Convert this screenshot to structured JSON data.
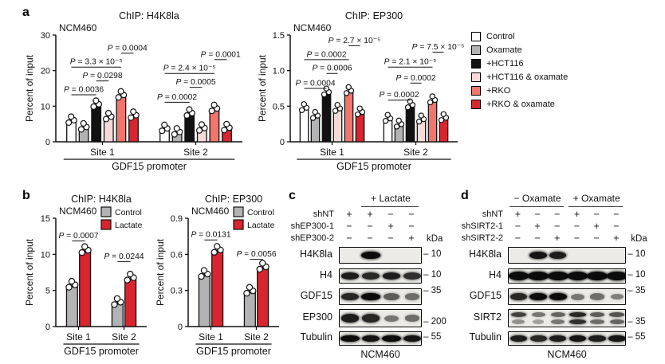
{
  "panel_labels": {
    "a": "a",
    "b": "b",
    "c": "c",
    "d": "d"
  },
  "legend_a": {
    "items": [
      {
        "label": "Control",
        "color": "#ffffff"
      },
      {
        "label": "Oxamate",
        "color": "#b3b3b5"
      },
      {
        "label": "+HCT116",
        "color": "#111111"
      },
      {
        "label": "+HCT116 & oxamate",
        "color": "#f7dbd8"
      },
      {
        "label": "+RKO",
        "color": "#f2756c"
      },
      {
        "label": "+RKO & oxamate",
        "color": "#d9252f"
      }
    ]
  },
  "chart_data": [
    {
      "id": "a-chip-h4k8la",
      "type": "bar",
      "title": "ChIP: H4K8la",
      "subtitle": "NCM460",
      "ylabel": "Percent of input",
      "ylim": [
        0,
        30
      ],
      "yticks": [
        {
          "v": 0,
          "label": "0"
        },
        {
          "v": 10,
          "label": "10"
        },
        {
          "v": 20,
          "label": "20"
        },
        {
          "v": 30,
          "label": "30"
        }
      ],
      "groups": [
        "Site 1",
        "Site 2"
      ],
      "group_label": "GDF15 promoter",
      "series": [
        {
          "name": "Control",
          "color": "#ffffff",
          "values": [
            5.5,
            3.2
          ]
        },
        {
          "name": "Oxamate",
          "color": "#b3b3b5",
          "values": [
            3.6,
            2.2
          ]
        },
        {
          "name": "+HCT116",
          "color": "#111111",
          "values": [
            10.0,
            7.5
          ]
        },
        {
          "name": "+HCT116 & oxamate",
          "color": "#f7dbd8",
          "values": [
            6.5,
            3.3
          ]
        },
        {
          "name": "+RKO",
          "color": "#f2756c",
          "values": [
            12.6,
            8.8
          ]
        },
        {
          "name": "+RKO & oxamate",
          "color": "#d9252f",
          "values": [
            6.9,
            3.4
          ]
        }
      ],
      "annotations": [
        {
          "text": "P = 0.0036",
          "x1": [
            0,
            0
          ],
          "x2": [
            0,
            2
          ],
          "yf": 0.56
        },
        {
          "text": "P = 0.0298",
          "x1": [
            0,
            2
          ],
          "x2": [
            0,
            3
          ],
          "yf": 0.43
        },
        {
          "text": "P = 3.3 × 10⁻⁵",
          "x1": [
            0,
            0
          ],
          "x2": [
            0,
            4
          ],
          "yf": 0.3
        },
        {
          "text": "P = 0.0004",
          "x1": [
            0,
            4
          ],
          "x2": [
            0,
            5
          ],
          "yf": 0.17
        },
        {
          "text": "P = 0.0002",
          "x1": [
            1,
            0
          ],
          "x2": [
            1,
            2
          ],
          "yf": 0.63
        },
        {
          "text": "P = 0.0005",
          "x1": [
            1,
            2
          ],
          "x2": [
            1,
            3
          ],
          "yf": 0.49
        },
        {
          "text": "P = 2.4 × 10⁻⁵",
          "x1": [
            1,
            0
          ],
          "x2": [
            1,
            4
          ],
          "yf": 0.36
        },
        {
          "text": "P = 0.0001",
          "x1": [
            1,
            4
          ],
          "x2": [
            1,
            5
          ],
          "yf": 0.23
        }
      ]
    },
    {
      "id": "a-chip-ep300",
      "type": "bar",
      "title": "ChIP: EP300",
      "subtitle": "NCM460",
      "ylabel": "Percent of input",
      "ylim": [
        0,
        1.5
      ],
      "yticks": [
        {
          "v": 0,
          "label": "0"
        },
        {
          "v": 0.5,
          "label": "0.5"
        },
        {
          "v": 1.0,
          "label": "1.0"
        },
        {
          "v": 1.5,
          "label": "1.5"
        }
      ],
      "groups": [
        "Site 1",
        "Site 2"
      ],
      "group_label": "GDF15 promoter",
      "series": [
        {
          "name": "Control",
          "color": "#ffffff",
          "values": [
            0.45,
            0.3
          ]
        },
        {
          "name": "Oxamate",
          "color": "#b3b3b5",
          "values": [
            0.34,
            0.22
          ]
        },
        {
          "name": "+HCT116",
          "color": "#111111",
          "values": [
            0.67,
            0.49
          ]
        },
        {
          "name": "+HCT116 & oxamate",
          "color": "#f7dbd8",
          "values": [
            0.44,
            0.29
          ]
        },
        {
          "name": "+RKO",
          "color": "#f2756c",
          "values": [
            0.69,
            0.56
          ]
        },
        {
          "name": "+RKO & oxamate",
          "color": "#d9252f",
          "values": [
            0.39,
            0.31
          ]
        }
      ],
      "annotations": [
        {
          "text": "P = 0.0004",
          "x1": [
            0,
            0
          ],
          "x2": [
            0,
            2
          ],
          "yf": 0.5
        },
        {
          "text": "P = 0.0006",
          "x1": [
            0,
            2
          ],
          "x2": [
            0,
            3
          ],
          "yf": 0.36
        },
        {
          "text": "P = 0.0002",
          "x1": [
            0,
            0
          ],
          "x2": [
            0,
            4
          ],
          "yf": 0.23
        },
        {
          "text": "P = 2.7 × 10⁻⁵",
          "x1": [
            0,
            4
          ],
          "x2": [
            0,
            5
          ],
          "yf": 0.1
        },
        {
          "text": "P = 0.0002",
          "x1": [
            1,
            0
          ],
          "x2": [
            1,
            2
          ],
          "yf": 0.61
        },
        {
          "text": "P = 0.0002",
          "x1": [
            1,
            2
          ],
          "x2": [
            1,
            3
          ],
          "yf": 0.45
        },
        {
          "text": "P = 2.1 × 10⁻⁵",
          "x1": [
            1,
            0
          ],
          "x2": [
            1,
            4
          ],
          "yf": 0.3
        },
        {
          "text": "P = 7.5 × 10⁻⁵",
          "x1": [
            1,
            4
          ],
          "x2": [
            1,
            5
          ],
          "yf": 0.16
        }
      ]
    },
    {
      "id": "b-chip-h4k8la",
      "type": "bar",
      "title": "ChIP: H4K8la",
      "subtitle": "NCM460",
      "ylabel": "Percent of input",
      "ylim": [
        0,
        15
      ],
      "yticks": [
        {
          "v": 0,
          "label": "0"
        },
        {
          "v": 5,
          "label": "5"
        },
        {
          "v": 10,
          "label": "10"
        },
        {
          "v": 15,
          "label": "15"
        }
      ],
      "groups": [
        "Site 1",
        "Site 2"
      ],
      "group_label": "GDF15 promoter",
      "legend_inline": true,
      "series": [
        {
          "name": "Control",
          "color": "#b3b3b5",
          "values": [
            5.5,
            3.1
          ]
        },
        {
          "name": "Lactate",
          "color": "#d9252f",
          "values": [
            10.3,
            6.5
          ]
        }
      ],
      "annotations": [
        {
          "text": "P = 0.0007",
          "x1": [
            0,
            0
          ],
          "x2": [
            0,
            1
          ],
          "yf": 0.21
        },
        {
          "text": "P = 0.0244",
          "x1": [
            1,
            0
          ],
          "x2": [
            1,
            1
          ],
          "yf": 0.4
        }
      ]
    },
    {
      "id": "b-chip-ep300",
      "type": "bar",
      "title": "ChIP: EP300",
      "subtitle": "NCM460",
      "ylabel": "Percent of input",
      "ylim": [
        0,
        0.9
      ],
      "yticks": [
        {
          "v": 0,
          "label": "0"
        },
        {
          "v": 0.3,
          "label": "0.3"
        },
        {
          "v": 0.6,
          "label": "0.6"
        },
        {
          "v": 0.9,
          "label": "0.9"
        }
      ],
      "groups": [
        "Site 1",
        "Site 2"
      ],
      "group_label": "GDF15 promoter",
      "legend_inline": true,
      "series": [
        {
          "name": "Control",
          "color": "#b3b3b5",
          "values": [
            0.42,
            0.28
          ]
        },
        {
          "name": "Lactate",
          "color": "#d9252f",
          "values": [
            0.62,
            0.48
          ]
        }
      ],
      "annotations": [
        {
          "text": "P = 0.0131",
          "x1": [
            0,
            0
          ],
          "x2": [
            0,
            1
          ],
          "yf": 0.2
        },
        {
          "text": "P = 0.0056",
          "x1": [
            1,
            0
          ],
          "x2": [
            1,
            1
          ],
          "yf": 0.38
        }
      ]
    }
  ],
  "blots": [
    {
      "id": "c",
      "cell_line": "NCM460",
      "kda_header": "kDa",
      "n_lanes": 4,
      "treatments": [
        {
          "label": "+ Lactate",
          "from": 1,
          "to": 3
        }
      ],
      "sh_rows": [
        {
          "label": "shNT",
          "signs": [
            "+",
            "+",
            "−",
            "−"
          ]
        },
        {
          "label": "shEP300-1",
          "signs": [
            "−",
            "−",
            "+",
            "−"
          ]
        },
        {
          "label": "shEP300-2",
          "signs": [
            "−",
            "−",
            "−",
            "+"
          ]
        }
      ],
      "rows": [
        {
          "target": "H4K8la",
          "kda": "10",
          "kda_pos": "center",
          "bands": [
            0,
            1,
            0,
            0
          ]
        },
        {
          "target": "H4",
          "kda": "10",
          "kda_pos": "center",
          "bands": [
            0.9,
            0.85,
            0.9,
            0.8
          ]
        },
        {
          "target": "GDF15",
          "kda": "35",
          "kda_pos": "top",
          "bands": [
            0.85,
            1,
            0.55,
            0.45
          ]
        },
        {
          "target": "EP300",
          "kda": "200",
          "kda_pos": "bottom",
          "bands": [
            0.9,
            0.85,
            0.4,
            0.45
          ]
        },
        {
          "target": "Tubulin",
          "kda": "55",
          "kda_pos": "center",
          "bands": [
            1,
            0.95,
            1,
            0.95
          ]
        }
      ]
    },
    {
      "id": "d",
      "cell_line": "NCM460",
      "kda_header": "kDa",
      "n_lanes": 6,
      "treatments": [
        {
          "label": "− Oxamate",
          "from": 0,
          "to": 2
        },
        {
          "label": "+ Oxamate",
          "from": 3,
          "to": 5
        }
      ],
      "sh_rows": [
        {
          "label": "shNT",
          "signs": [
            "+",
            "−",
            "−",
            "+",
            "−",
            "−"
          ]
        },
        {
          "label": "shSIRT2-1",
          "signs": [
            "−",
            "+",
            "−",
            "−",
            "+",
            "−"
          ]
        },
        {
          "label": "shSIRT2-2",
          "signs": [
            "−",
            "−",
            "+",
            "−",
            "−",
            "+"
          ]
        }
      ],
      "rows": [
        {
          "target": "H4K8la",
          "kda": "10",
          "kda_pos": "center",
          "bands": [
            0,
            0.95,
            0.9,
            0,
            0,
            0
          ]
        },
        {
          "target": "H4",
          "kda": "10",
          "kda_pos": "center",
          "merge": true,
          "bands": [
            1,
            1,
            1,
            1,
            1,
            1
          ]
        },
        {
          "target": "GDF15",
          "kda": "35",
          "kda_pos": "top",
          "bands": [
            0.85,
            1,
            1,
            0.4,
            0.45,
            0.35
          ]
        },
        {
          "target": "SIRT2",
          "kda": "35",
          "kda_pos": "bottom",
          "bands": [
            0.7,
            0.4,
            0.5,
            0.85,
            0.55,
            0.6
          ],
          "bands2": [
            0.25,
            0.15,
            0.4,
            0.8,
            0.45,
            0.5
          ]
        },
        {
          "target": "Tubulin",
          "kda": "55",
          "kda_pos": "center",
          "bands": [
            0.9,
            0.85,
            0.9,
            0.95,
            0.9,
            0.95
          ]
        }
      ]
    }
  ]
}
